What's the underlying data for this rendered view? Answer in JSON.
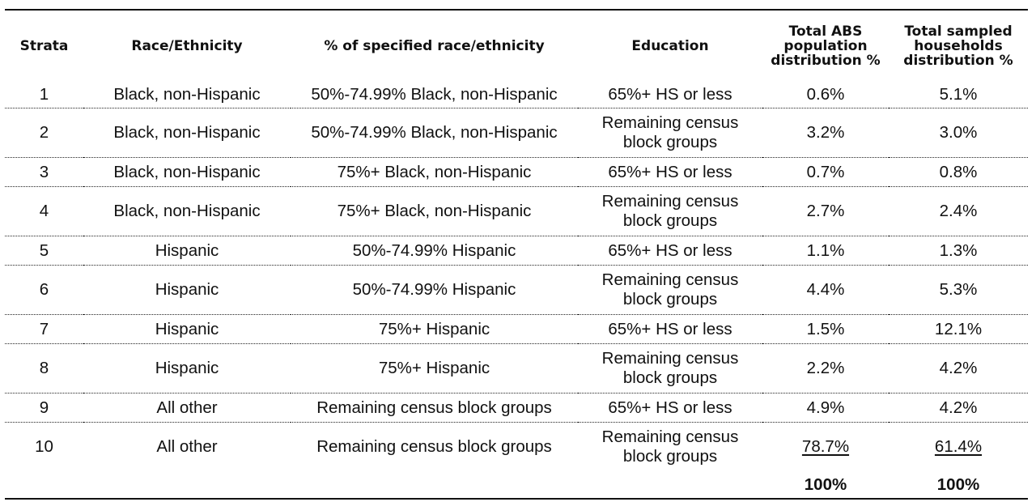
{
  "headers": {
    "strata": "Strata",
    "race": "Race/Ethnicity",
    "pct": "% of specified race/ethnicity",
    "education": "Education",
    "abs_line1": "Total ABS",
    "abs_line2": "population",
    "abs_line3": "distribution %",
    "hh_line1": "Total sampled",
    "hh_line2": "households",
    "hh_line3": "distribution %"
  },
  "rows": [
    {
      "strata": "1",
      "race": "Black, non-Hispanic",
      "pct": "50%-74.99% Black, non-Hispanic",
      "education": "65%+ HS or less",
      "abs": "0.6%",
      "hh": "5.1%"
    },
    {
      "strata": "2",
      "race": "Black, non-Hispanic",
      "pct": "50%-74.99% Black, non-Hispanic",
      "education_line1": "Remaining census",
      "education_line2": "block groups",
      "abs": "3.2%",
      "hh": "3.0%"
    },
    {
      "strata": "3",
      "race": "Black, non-Hispanic",
      "pct": "75%+ Black, non-Hispanic",
      "education": "65%+ HS or less",
      "abs": "0.7%",
      "hh": "0.8%"
    },
    {
      "strata": "4",
      "race": "Black, non-Hispanic",
      "pct": "75%+ Black, non-Hispanic",
      "education_line1": "Remaining census",
      "education_line2": "block groups",
      "abs": "2.7%",
      "hh": "2.4%"
    },
    {
      "strata": "5",
      "race": "Hispanic",
      "pct": "50%-74.99% Hispanic",
      "education": "65%+ HS or less",
      "abs": "1.1%",
      "hh": "1.3%"
    },
    {
      "strata": "6",
      "race": "Hispanic",
      "pct": "50%-74.99% Hispanic",
      "education_line1": "Remaining census",
      "education_line2": "block groups",
      "abs": "4.4%",
      "hh": "5.3%"
    },
    {
      "strata": "7",
      "race": "Hispanic",
      "pct": "75%+ Hispanic",
      "education": "65%+ HS or less",
      "abs": "1.5%",
      "hh": "12.1%"
    },
    {
      "strata": "8",
      "race": "Hispanic",
      "pct": "75%+ Hispanic",
      "education_line1": "Remaining census",
      "education_line2": "block groups",
      "abs": "2.2%",
      "hh": "4.2%"
    },
    {
      "strata": "9",
      "race": "All other",
      "pct": "Remaining census block groups",
      "education": "65%+ HS or less",
      "abs": "4.9%",
      "hh": "4.2%"
    },
    {
      "strata": "10",
      "race": "All other",
      "pct": "Remaining census block groups",
      "education_line1": "Remaining census",
      "education_line2": "block groups",
      "abs": "78.7%",
      "hh": "61.4%"
    }
  ],
  "totals": {
    "abs": "100%",
    "hh": "100%"
  }
}
